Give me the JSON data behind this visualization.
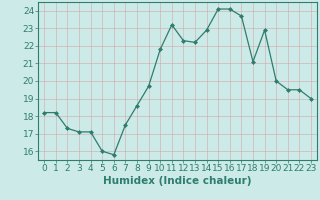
{
  "x": [
    0,
    1,
    2,
    3,
    4,
    5,
    6,
    7,
    8,
    9,
    10,
    11,
    12,
    13,
    14,
    15,
    16,
    17,
    18,
    19,
    20,
    21,
    22,
    23
  ],
  "y": [
    18.2,
    18.2,
    17.3,
    17.1,
    17.1,
    16.0,
    15.8,
    17.5,
    18.6,
    19.7,
    21.8,
    23.2,
    22.3,
    22.2,
    22.9,
    24.1,
    24.1,
    23.7,
    21.1,
    22.9,
    20.0,
    19.5,
    19.5,
    19.0
  ],
  "line_color": "#2e7d6e",
  "marker": "D",
  "marker_size": 2.0,
  "bg_color": "#cceae8",
  "grid_color": "#b0d8d4",
  "xlabel": "Humidex (Indice chaleur)",
  "ylim": [
    15.5,
    24.5
  ],
  "xlim": [
    -0.5,
    23.5
  ],
  "yticks": [
    16,
    17,
    18,
    19,
    20,
    21,
    22,
    23,
    24
  ],
  "xticks": [
    0,
    1,
    2,
    3,
    4,
    5,
    6,
    7,
    8,
    9,
    10,
    11,
    12,
    13,
    14,
    15,
    16,
    17,
    18,
    19,
    20,
    21,
    22,
    23
  ],
  "tick_color": "#2e7d6e",
  "label_color": "#2e7d6e",
  "tick_fontsize": 6.5,
  "xlabel_fontsize": 7.5,
  "spine_color": "#2e7d6e"
}
